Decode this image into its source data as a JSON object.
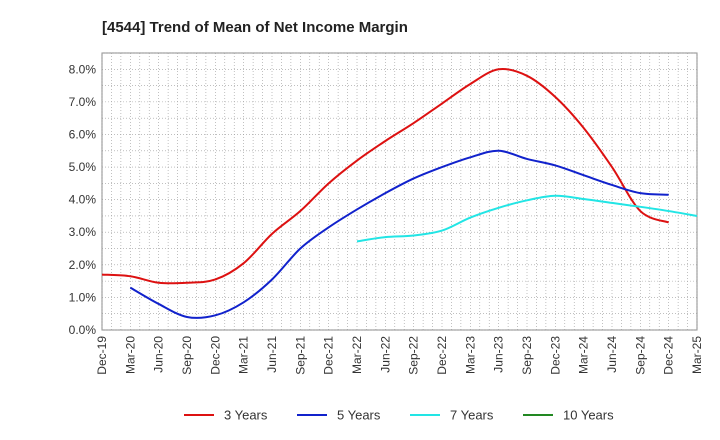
{
  "chart_data": {
    "type": "line",
    "title": "[4544]  Trend of Mean of Net Income Margin",
    "xlabel": "",
    "ylabel": "",
    "x_ticks": [
      "Dec-19",
      "Mar-20",
      "Jun-20",
      "Sep-20",
      "Dec-20",
      "Mar-21",
      "Jun-21",
      "Sep-21",
      "Dec-21",
      "Mar-22",
      "Jun-22",
      "Sep-22",
      "Dec-22",
      "Mar-23",
      "Jun-23",
      "Sep-23",
      "Dec-23",
      "Mar-24",
      "Jun-24",
      "Sep-24",
      "Dec-24",
      "Mar-25"
    ],
    "y_ticks": [
      "0.0%",
      "1.0%",
      "2.0%",
      "3.0%",
      "4.0%",
      "5.0%",
      "6.0%",
      "7.0%",
      "8.0%"
    ],
    "ylim": [
      0,
      8.5
    ],
    "grid": true,
    "legend_position": "bottom",
    "series": [
      {
        "name": "3 Years",
        "color": "#dd1111",
        "start_index": 0,
        "values": [
          1.7,
          1.65,
          1.45,
          1.45,
          1.55,
          2.05,
          2.95,
          3.65,
          4.5,
          5.2,
          5.8,
          6.35,
          6.95,
          7.55,
          8.0,
          7.8,
          7.15,
          6.2,
          5.0,
          3.65,
          3.3
        ]
      },
      {
        "name": "5 Years",
        "color": "#1122cc",
        "start_index": 1,
        "values": [
          1.3,
          0.8,
          0.4,
          0.45,
          0.85,
          1.55,
          2.5,
          3.15,
          3.7,
          4.2,
          4.65,
          5.0,
          5.3,
          5.5,
          5.25,
          5.05,
          4.75,
          4.45,
          4.2,
          4.15
        ]
      },
      {
        "name": "7 Years",
        "color": "#22e5e5",
        "start_index": 9,
        "values": [
          2.72,
          2.85,
          2.9,
          3.05,
          3.45,
          3.75,
          3.98,
          4.12,
          4.02,
          3.9,
          3.78,
          3.65,
          3.5
        ]
      },
      {
        "name": "10 Years",
        "color": "#228822",
        "start_index": 0,
        "values": []
      }
    ]
  }
}
